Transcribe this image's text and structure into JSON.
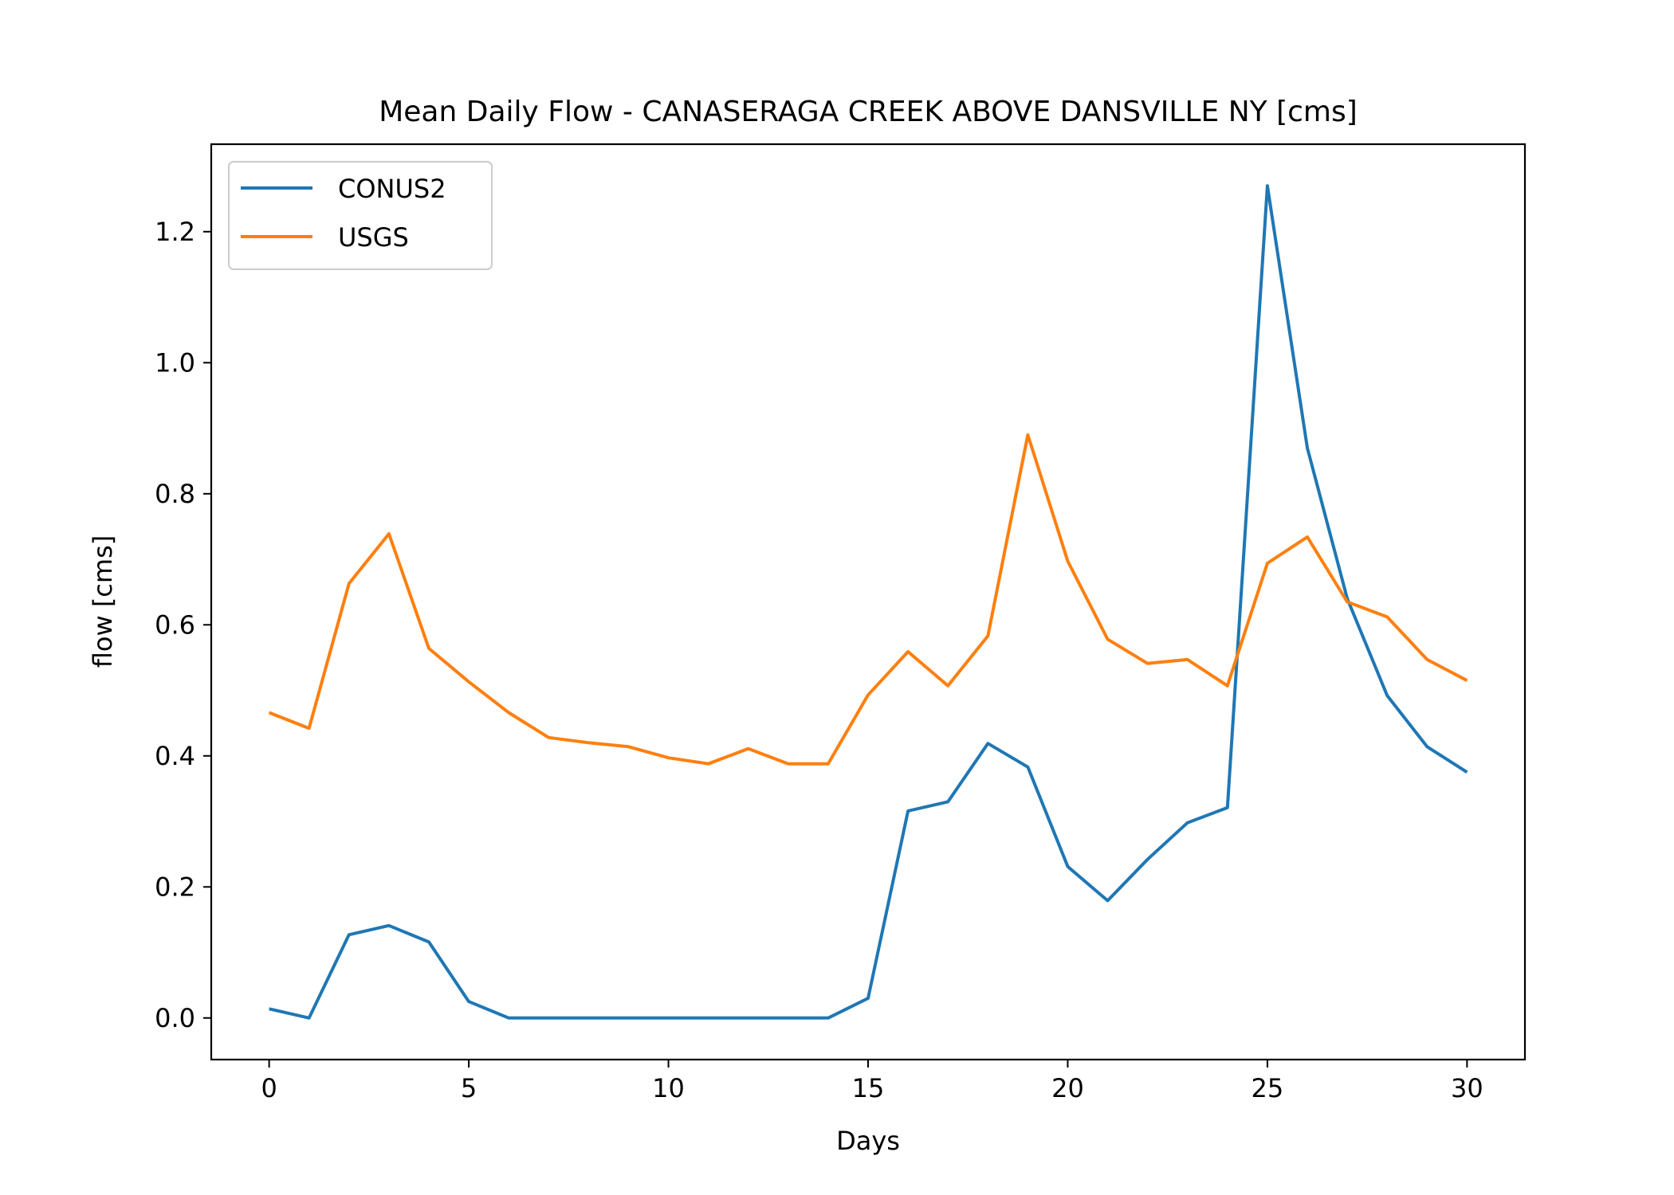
{
  "chart_data": {
    "type": "line",
    "title": "Mean Daily Flow - CANASERAGA CREEK ABOVE DANSVILLE NY [cms]",
    "xlabel": "Days",
    "ylabel": "flow [cms]",
    "xlim": [
      -1.45,
      31.45
    ],
    "ylim": [
      -0.0635,
      1.3335
    ],
    "xticks": [
      0,
      5,
      10,
      15,
      20,
      25,
      30
    ],
    "yticks": [
      0.0,
      0.2,
      0.4,
      0.6,
      0.8,
      1.0,
      1.2
    ],
    "ytick_labels": [
      "0.0",
      "0.2",
      "0.4",
      "0.6",
      "0.8",
      "1.0",
      "1.2"
    ],
    "grid": false,
    "legend_position": "upper-left",
    "x": [
      0,
      1,
      2,
      3,
      4,
      5,
      6,
      7,
      8,
      9,
      10,
      11,
      12,
      13,
      14,
      15,
      16,
      17,
      18,
      19,
      20,
      21,
      22,
      23,
      24,
      25,
      26,
      27,
      28,
      29,
      30
    ],
    "series": [
      {
        "name": "CONUS2",
        "color": "#1f77b4",
        "values": [
          0.014,
          0.0,
          0.127,
          0.141,
          0.116,
          0.025,
          0.0,
          0.0,
          0.0,
          0.0,
          0.0,
          0.0,
          0.0,
          0.0,
          0.0,
          0.03,
          0.316,
          0.33,
          0.419,
          0.383,
          0.231,
          0.179,
          0.242,
          0.298,
          0.321,
          1.27,
          0.87,
          0.64,
          0.492,
          0.414,
          0.375
        ]
      },
      {
        "name": "USGS",
        "color": "#ff7f0e",
        "values": [
          0.466,
          0.442,
          0.663,
          0.739,
          0.564,
          0.513,
          0.466,
          0.428,
          0.42,
          0.414,
          0.397,
          0.388,
          0.411,
          0.388,
          0.388,
          0.493,
          0.559,
          0.507,
          0.583,
          0.89,
          0.697,
          0.578,
          0.541,
          0.547,
          0.507,
          0.694,
          0.734,
          0.635,
          0.612,
          0.547,
          0.515
        ]
      }
    ]
  }
}
